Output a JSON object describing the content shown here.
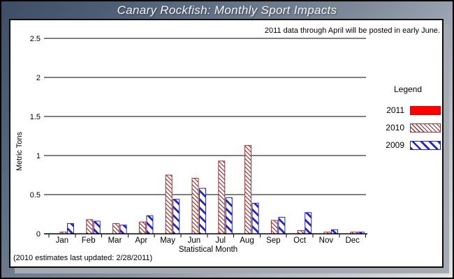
{
  "window": {
    "title": "Canary Rockfish: Monthly Sport Impacts"
  },
  "panel": {
    "note": "2011 data through April will be posted in early June.",
    "update_note": "(2010 estimates last updated: 2/28/2011)"
  },
  "legend": {
    "title": "Legend",
    "items": [
      {
        "label": "2011",
        "color": "#ff0000",
        "pattern": "solid"
      },
      {
        "label": "2010",
        "color": "#993333",
        "pattern": "fine-hatch"
      },
      {
        "label": "2009",
        "color": "#2222cc",
        "pattern": "wide-hatch"
      }
    ]
  },
  "chart_data": {
    "type": "bar",
    "title": "Canary Rockfish: Monthly Sport Impacts",
    "categories": [
      "Jan",
      "Feb",
      "Mar",
      "Apr",
      "May",
      "Jun",
      "Jul",
      "Aug",
      "Sep",
      "Oct",
      "Nov",
      "Dec"
    ],
    "series": [
      {
        "name": "2011",
        "pattern": "solid",
        "color": "#ff0000",
        "values": [
          0,
          0,
          0,
          0,
          0,
          0,
          0,
          0,
          0,
          0,
          0,
          0
        ]
      },
      {
        "name": "2010",
        "pattern": "fine-hatch",
        "color": "#993333",
        "values": [
          0.02,
          0.18,
          0.13,
          0.15,
          0.75,
          0.71,
          0.93,
          1.13,
          0.17,
          0.04,
          0.02,
          0.02
        ]
      },
      {
        "name": "2009",
        "pattern": "wide-hatch",
        "color": "#2222cc",
        "values": [
          0.13,
          0.16,
          0.11,
          0.23,
          0.44,
          0.58,
          0.46,
          0.39,
          0.21,
          0.27,
          0.05,
          0.02
        ]
      }
    ],
    "xlabel": "Statistical Month",
    "ylabel": "Metric Tons",
    "ylim": [
      0,
      2.5
    ],
    "yticks": [
      "0",
      "0.5",
      "1",
      "1.5",
      "2",
      "2.5"
    ],
    "grid": true,
    "legend_position": "right"
  }
}
